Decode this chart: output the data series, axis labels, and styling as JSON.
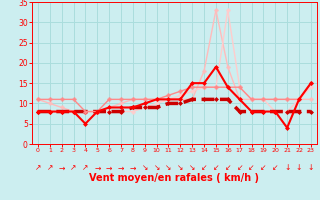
{
  "xlabel": "Vent moyen/en rafales ( km/h )",
  "xlim": [
    -0.5,
    23.5
  ],
  "ylim": [
    0,
    35
  ],
  "yticks": [
    0,
    5,
    10,
    15,
    20,
    25,
    30,
    35
  ],
  "xticks": [
    0,
    1,
    2,
    3,
    4,
    5,
    6,
    7,
    8,
    9,
    10,
    11,
    12,
    13,
    14,
    15,
    16,
    17,
    18,
    19,
    20,
    21,
    22,
    23
  ],
  "background_color": "#cceef0",
  "grid_color": "#aadddd",
  "lines": [
    {
      "x": [
        0,
        1,
        2,
        3,
        4,
        5,
        6,
        7,
        8,
        9,
        10,
        11,
        12,
        13,
        14,
        15,
        16,
        17,
        18,
        19,
        20,
        21,
        22,
        23
      ],
      "y": [
        8,
        8,
        8,
        8,
        5,
        8,
        9,
        9,
        9,
        10,
        11,
        11,
        11,
        15,
        15,
        19,
        14,
        11,
        8,
        8,
        8,
        4,
        11,
        15
      ],
      "color": "#ff0000",
      "lw": 1.5,
      "marker": "D",
      "markersize": 2.0,
      "linestyle": "-",
      "zorder": 5
    },
    {
      "x": [
        0,
        1,
        2,
        3,
        4,
        5,
        6,
        7,
        8,
        9,
        10,
        11,
        12,
        13,
        14,
        15,
        16,
        17,
        18,
        19,
        20,
        21,
        22,
        23
      ],
      "y": [
        11,
        11,
        11,
        11,
        8,
        8,
        11,
        11,
        11,
        11,
        11,
        12,
        13,
        14,
        14,
        14,
        14,
        14,
        11,
        11,
        11,
        11,
        11,
        15
      ],
      "color": "#ff8888",
      "lw": 1.0,
      "marker": "P",
      "markersize": 2.5,
      "linestyle": "-",
      "zorder": 4
    },
    {
      "x": [
        0,
        1,
        2,
        3,
        4,
        5,
        6,
        7,
        8,
        9,
        10,
        11,
        12,
        13,
        14,
        15,
        16,
        17,
        18,
        19,
        20,
        21,
        22,
        23
      ],
      "y": [
        8,
        8,
        8,
        8,
        8,
        8,
        8,
        8,
        9,
        9,
        9,
        10,
        10,
        11,
        11,
        11,
        11,
        8,
        8,
        8,
        8,
        8,
        8,
        8
      ],
      "color": "#cc0000",
      "lw": 2.5,
      "marker": "D",
      "markersize": 2.0,
      "linestyle": "--",
      "zorder": 3
    },
    {
      "x": [
        0,
        1,
        2,
        3,
        4,
        5,
        6,
        7,
        8,
        9,
        10,
        11,
        12,
        13,
        14,
        15,
        16,
        17,
        18,
        19,
        20,
        21,
        22,
        23
      ],
      "y": [
        11,
        10,
        9,
        8,
        8,
        8,
        9,
        10,
        11,
        11,
        11,
        11,
        11,
        11,
        18,
        33,
        19,
        11,
        11,
        11,
        11,
        11,
        11,
        11
      ],
      "color": "#ffbbbb",
      "lw": 1.0,
      "marker": "P",
      "markersize": 2.5,
      "linestyle": "-",
      "zorder": 2
    },
    {
      "x": [
        0,
        1,
        2,
        3,
        4,
        5,
        6,
        7,
        8,
        9,
        10,
        11,
        12,
        13,
        14,
        15,
        16,
        17,
        18,
        19,
        20,
        21,
        22,
        23
      ],
      "y": [
        8,
        8,
        8,
        8,
        8,
        8,
        8,
        8,
        8,
        9,
        10,
        11,
        12,
        13,
        14,
        14,
        33,
        14,
        11,
        11,
        8,
        8,
        11,
        14
      ],
      "color": "#ffcccc",
      "lw": 1.0,
      "marker": "P",
      "markersize": 2.5,
      "linestyle": "-",
      "zorder": 2
    }
  ],
  "wind_arrows": [
    "↗",
    "↗",
    "→",
    "↗",
    "↗",
    "→",
    "→",
    "→",
    "→",
    "↘",
    "↘",
    "↘",
    "↘",
    "↘",
    "↙",
    "↙",
    "↙",
    "↙",
    "↙",
    "↙",
    "↙",
    "↓",
    "↓",
    "↓"
  ],
  "arrow_color": "#ff0000",
  "arrow_fontsize": 5.5,
  "tick_color": "#ff0000",
  "tick_fontsize_x": 4.5,
  "tick_fontsize_y": 5.5,
  "xlabel_fontsize": 7,
  "xlabel_color": "#ff0000",
  "spine_color": "#ff0000"
}
